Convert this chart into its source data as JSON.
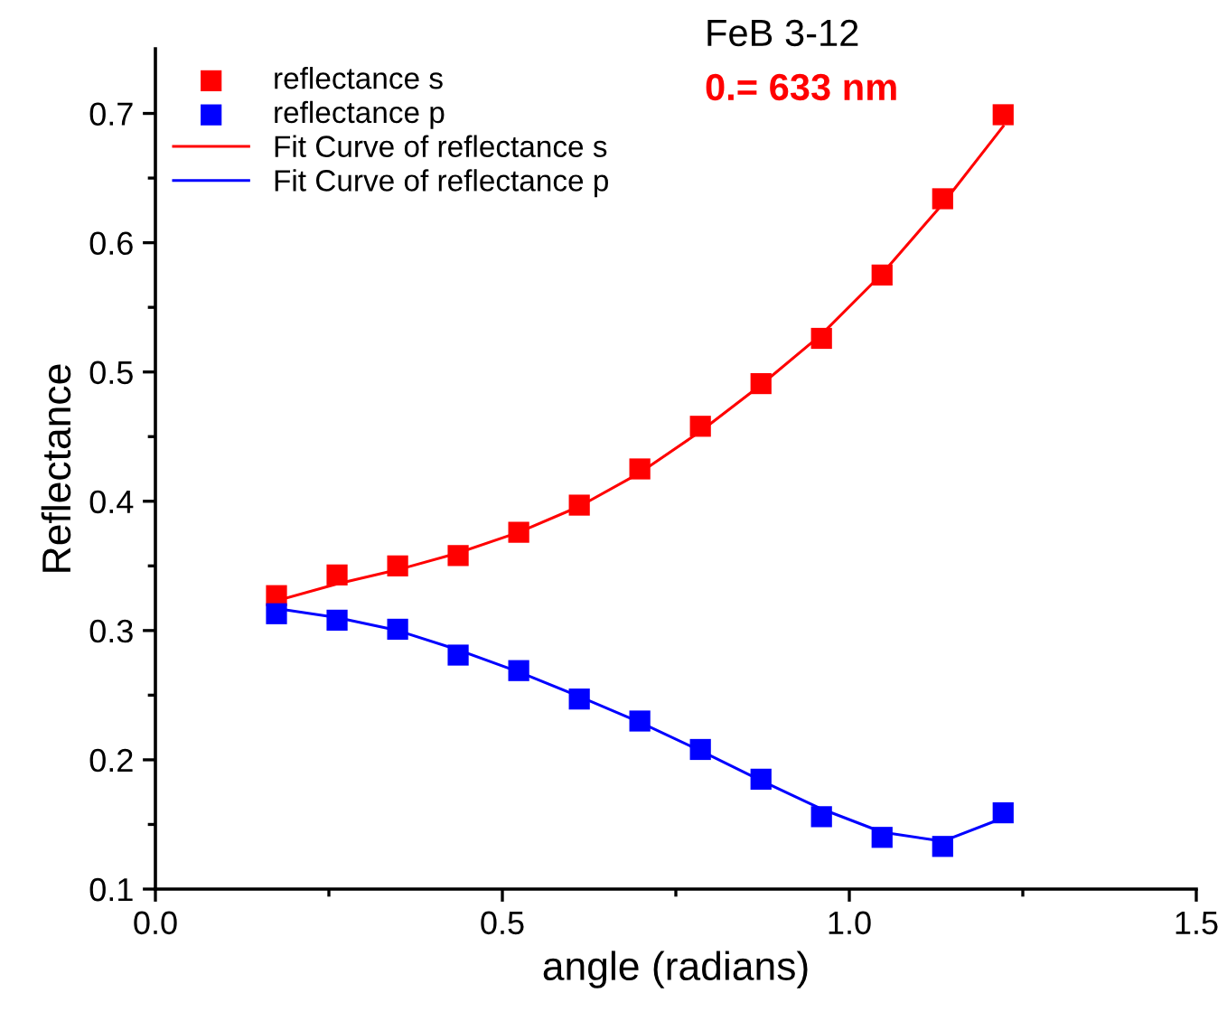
{
  "chart_data": {
    "type": "scatter",
    "xlabel": "angle (radians)",
    "ylabel": "Reflectance",
    "annotations": [
      "FeB 3-12",
      "0.= 633 nm"
    ],
    "x": [
      0.1745,
      0.2618,
      0.3491,
      0.4363,
      0.5236,
      0.6109,
      0.6981,
      0.7854,
      0.8727,
      0.9599,
      1.0472,
      1.1345,
      1.2217
    ],
    "series": [
      {
        "name": "reflectance s",
        "marker": "square",
        "color": "#ff0000",
        "values": [
          0.327,
          0.343,
          0.35,
          0.358,
          0.376,
          0.397,
          0.425,
          0.458,
          0.491,
          0.526,
          0.575,
          0.634,
          0.699
        ]
      },
      {
        "name": "reflectance p",
        "marker": "square",
        "color": "#0000ff",
        "values": [
          0.313,
          0.308,
          0.301,
          0.281,
          0.269,
          0.247,
          0.23,
          0.208,
          0.185,
          0.156,
          0.14,
          0.133,
          0.159
        ]
      },
      {
        "name": "Fit Curve of reflectance s",
        "type": "line",
        "marker": "none",
        "line_style": "solid",
        "color": "#ff0000",
        "values": [
          0.323,
          0.336,
          0.347,
          0.36,
          0.376,
          0.396,
          0.422,
          0.454,
          0.49,
          0.529,
          0.576,
          0.63,
          0.69
        ]
      },
      {
        "name": "Fit Curve of reflectance p",
        "type": "line",
        "marker": "none",
        "line_style": "solid",
        "color": "#0000ff",
        "values": [
          0.317,
          0.31,
          0.3,
          0.285,
          0.268,
          0.249,
          0.229,
          0.207,
          0.184,
          0.162,
          0.144,
          0.137,
          0.155
        ]
      }
    ],
    "xlim": [
      0.0,
      1.5
    ],
    "xticks": [
      {
        "value": 0,
        "label": "0.0"
      },
      0.5,
      {
        "value": 1,
        "label": "1.0"
      },
      1.5
    ],
    "ylim": [
      0.1,
      0.75
    ],
    "yticks": [
      0.1,
      0.2,
      0.3,
      0.4,
      0.5,
      0.6,
      0.7
    ],
    "grid": false,
    "legend": "top left"
  }
}
